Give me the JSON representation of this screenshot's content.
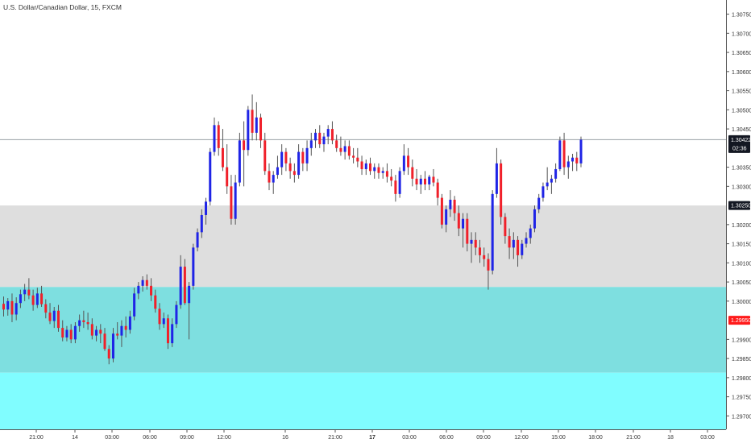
{
  "header": {
    "symbol_title": "U.S. Dollar/Canadian Dollar, 15, FXCM"
  },
  "chart_data": {
    "type": "candlestick",
    "ylim": [
      1.29665,
      1.30787
    ],
    "y_ticks": [
      "1.30750",
      "1.30700",
      "1.30650",
      "1.30600",
      "1.30550",
      "1.30500",
      "1.30450",
      "1.30350",
      "1.30300",
      "1.30200",
      "1.30150",
      "1.30100",
      "1.30050",
      "1.30000",
      "1.29900",
      "1.29850",
      "1.29800",
      "1.29750",
      "1.29700"
    ],
    "x_ticks": [
      {
        "label": "21:00",
        "bold": false
      },
      {
        "label": "14",
        "bold": false
      },
      {
        "label": "03:00",
        "bold": false
      },
      {
        "label": "06:00",
        "bold": false
      },
      {
        "label": "09:00",
        "bold": false
      },
      {
        "label": "12:00",
        "bold": false
      },
      {
        "label": "16",
        "bold": false
      },
      {
        "label": "21:00",
        "bold": false
      },
      {
        "label": "17",
        "bold": true
      },
      {
        "label": "03:00",
        "bold": false
      },
      {
        "label": "06:00",
        "bold": false
      },
      {
        "label": "09:00",
        "bold": false
      },
      {
        "label": "12:00",
        "bold": false
      },
      {
        "label": "15:00",
        "bold": false
      },
      {
        "label": "18:00",
        "bold": false
      },
      {
        "label": "21:00",
        "bold": false
      },
      {
        "label": "18",
        "bold": false
      },
      {
        "label": "03:00",
        "bold": false
      }
    ],
    "price_tags": [
      {
        "label": "1.30422",
        "sub": "02:36",
        "value": 1.30422,
        "bg": "#131722",
        "fg": "#ffffff",
        "line": true
      },
      {
        "label": "1.30250",
        "value": 1.3025,
        "bg": "#131722",
        "fg": "#ffffff",
        "line": false
      },
      {
        "label": "1.29950",
        "value": 1.2995,
        "bg": "#ff1a1a",
        "fg": "#ffffff",
        "line": false
      }
    ],
    "zones": [
      {
        "from": 1.30037,
        "to": 1.3025,
        "color": "#dedede"
      },
      {
        "from": 1.29813,
        "to": 1.30037,
        "color": "#7edfe0"
      },
      {
        "from": 1.29665,
        "to": 1.29813,
        "color": "#80fdff"
      }
    ],
    "colors": {
      "up": "#1f24e6",
      "down": "#f0202a",
      "wick": "#555555"
    },
    "candles": [
      [
        1.29993,
        1.30012,
        1.2996,
        1.29978
      ],
      [
        1.29978,
        1.30008,
        1.29962,
        1.3
      ],
      [
        1.3,
        1.3002,
        1.29945,
        1.29965
      ],
      [
        1.29965,
        1.3001,
        1.2995,
        1.29995
      ],
      [
        1.29995,
        1.3003,
        1.29982,
        1.30018
      ],
      [
        1.30018,
        1.30045,
        1.3,
        1.3003
      ],
      [
        1.3003,
        1.3006,
        1.30005,
        1.30015
      ],
      [
        1.30015,
        1.3003,
        1.29975,
        1.2999
      ],
      [
        1.2999,
        1.30035,
        1.29982,
        1.3002
      ],
      [
        1.3002,
        1.3004,
        1.29985,
        1.29992
      ],
      [
        1.29992,
        1.30005,
        1.29955,
        1.2997
      ],
      [
        1.2997,
        1.29995,
        1.2994,
        1.29948
      ],
      [
        1.29948,
        1.29985,
        1.2993,
        1.29975
      ],
      [
        1.29975,
        1.2999,
        1.2992,
        1.2993
      ],
      [
        1.2993,
        1.2995,
        1.29895,
        1.29905
      ],
      [
        1.29905,
        1.29935,
        1.29895,
        1.29925
      ],
      [
        1.29925,
        1.2994,
        1.2989,
        1.299
      ],
      [
        1.299,
        1.29945,
        1.2989,
        1.29935
      ],
      [
        1.29935,
        1.29965,
        1.2992,
        1.2995
      ],
      [
        1.2995,
        1.29975,
        1.2993,
        1.29945
      ],
      [
        1.29945,
        1.2997,
        1.29925,
        1.2994
      ],
      [
        1.2994,
        1.29955,
        1.299,
        1.2991
      ],
      [
        1.2991,
        1.29935,
        1.29895,
        1.29925
      ],
      [
        1.29925,
        1.2994,
        1.2989,
        1.29915
      ],
      [
        1.29915,
        1.2993,
        1.2987,
        1.29875
      ],
      [
        1.29875,
        1.29885,
        1.29835,
        1.2985
      ],
      [
        1.2985,
        1.2993,
        1.2984,
        1.29915
      ],
      [
        1.29915,
        1.29945,
        1.299,
        1.2991
      ],
      [
        1.2991,
        1.2995,
        1.2988,
        1.29935
      ],
      [
        1.29935,
        1.2996,
        1.29905,
        1.29925
      ],
      [
        1.29925,
        1.29975,
        1.29915,
        1.2996
      ],
      [
        1.2996,
        1.30035,
        1.2995,
        1.3002
      ],
      [
        1.3002,
        1.3005,
        1.30005,
        1.3004
      ],
      [
        1.3004,
        1.30065,
        1.30025,
        1.30055
      ],
      [
        1.30055,
        1.3007,
        1.3003,
        1.3004
      ],
      [
        1.3004,
        1.3006,
        1.3,
        1.30015
      ],
      [
        1.30015,
        1.3003,
        1.2997,
        1.2998
      ],
      [
        1.2998,
        1.29995,
        1.29925,
        1.2994
      ],
      [
        1.2994,
        1.2997,
        1.2993,
        1.29955
      ],
      [
        1.29955,
        1.29965,
        1.29875,
        1.2989
      ],
      [
        1.2989,
        1.29955,
        1.2988,
        1.2994
      ],
      [
        1.2994,
        1.3,
        1.2993,
        1.2999
      ],
      [
        1.2999,
        1.3012,
        1.2998,
        1.3009
      ],
      [
        1.3009,
        1.3011,
        1.2999,
        1.29995
      ],
      [
        1.29995,
        1.3005,
        1.299,
        1.3004
      ],
      [
        1.3004,
        1.3015,
        1.3003,
        1.3014
      ],
      [
        1.3014,
        1.3019,
        1.3013,
        1.3018
      ],
      [
        1.3018,
        1.3024,
        1.30165,
        1.30225
      ],
      [
        1.30225,
        1.3027,
        1.302,
        1.3026
      ],
      [
        1.3026,
        1.304,
        1.3025,
        1.3039
      ],
      [
        1.3039,
        1.3048,
        1.3038,
        1.3046
      ],
      [
        1.3046,
        1.3047,
        1.3038,
        1.304
      ],
      [
        1.304,
        1.3045,
        1.3034,
        1.3035
      ],
      [
        1.3035,
        1.3041,
        1.3028,
        1.303
      ],
      [
        1.303,
        1.3033,
        1.302,
        1.30215
      ],
      [
        1.30215,
        1.3033,
        1.302,
        1.3031
      ],
      [
        1.3031,
        1.3044,
        1.303,
        1.3042
      ],
      [
        1.3042,
        1.3047,
        1.303,
        1.30395
      ],
      [
        1.30395,
        1.3051,
        1.3038,
        1.305
      ],
      [
        1.305,
        1.3054,
        1.3042,
        1.3044
      ],
      [
        1.3044,
        1.3052,
        1.3042,
        1.3048
      ],
      [
        1.3048,
        1.3049,
        1.304,
        1.3042
      ],
      [
        1.3042,
        1.3044,
        1.3033,
        1.3034
      ],
      [
        1.3034,
        1.3036,
        1.3029,
        1.3031
      ],
      [
        1.3031,
        1.3034,
        1.3028,
        1.3033
      ],
      [
        1.3033,
        1.3038,
        1.3032,
        1.3035
      ],
      [
        1.3035,
        1.3041,
        1.3033,
        1.3039
      ],
      [
        1.3039,
        1.304,
        1.3034,
        1.3036
      ],
      [
        1.3036,
        1.30375,
        1.3032,
        1.3034
      ],
      [
        1.3034,
        1.3036,
        1.3031,
        1.3033
      ],
      [
        1.3033,
        1.3041,
        1.3032,
        1.3039
      ],
      [
        1.3039,
        1.304,
        1.3034,
        1.3036
      ],
      [
        1.3036,
        1.3042,
        1.3034,
        1.304
      ],
      [
        1.304,
        1.3044,
        1.3038,
        1.3042
      ],
      [
        1.3042,
        1.3045,
        1.304,
        1.3044
      ],
      [
        1.3044,
        1.3046,
        1.304,
        1.3041
      ],
      [
        1.3041,
        1.3044,
        1.3039,
        1.3043
      ],
      [
        1.3043,
        1.3046,
        1.3041,
        1.3045
      ],
      [
        1.3045,
        1.3047,
        1.3041,
        1.3042
      ],
      [
        1.3042,
        1.30435,
        1.3039,
        1.304
      ],
      [
        1.304,
        1.3043,
        1.3038,
        1.3039
      ],
      [
        1.3039,
        1.3042,
        1.3037,
        1.30405
      ],
      [
        1.30405,
        1.3042,
        1.3037,
        1.3038
      ],
      [
        1.3038,
        1.304,
        1.3036,
        1.30375
      ],
      [
        1.30375,
        1.304,
        1.3035,
        1.30365
      ],
      [
        1.30365,
        1.3038,
        1.3033,
        1.30345
      ],
      [
        1.30345,
        1.3037,
        1.3033,
        1.3036
      ],
      [
        1.3036,
        1.30375,
        1.3033,
        1.3034
      ],
      [
        1.3034,
        1.3036,
        1.3032,
        1.3035
      ],
      [
        1.3035,
        1.3036,
        1.3032,
        1.30335
      ],
      [
        1.30335,
        1.3035,
        1.3032,
        1.3034
      ],
      [
        1.3034,
        1.3036,
        1.3031,
        1.30325
      ],
      [
        1.30325,
        1.30345,
        1.303,
        1.30315
      ],
      [
        1.30315,
        1.3033,
        1.3026,
        1.3028
      ],
      [
        1.3028,
        1.3035,
        1.3027,
        1.3034
      ],
      [
        1.3034,
        1.3041,
        1.3033,
        1.3038
      ],
      [
        1.3038,
        1.304,
        1.3033,
        1.3035
      ],
      [
        1.3035,
        1.3037,
        1.303,
        1.3032
      ],
      [
        1.3032,
        1.30345,
        1.3029,
        1.30305
      ],
      [
        1.30305,
        1.3033,
        1.3028,
        1.3032
      ],
      [
        1.3032,
        1.3034,
        1.3029,
        1.30305
      ],
      [
        1.30305,
        1.3033,
        1.3029,
        1.30325
      ],
      [
        1.30325,
        1.30345,
        1.303,
        1.3031
      ],
      [
        1.3031,
        1.3032,
        1.3025,
        1.3027
      ],
      [
        1.3027,
        1.3028,
        1.3019,
        1.302
      ],
      [
        1.302,
        1.3025,
        1.3018,
        1.3024
      ],
      [
        1.3024,
        1.3029,
        1.3022,
        1.30265
      ],
      [
        1.30265,
        1.30275,
        1.3021,
        1.3023
      ],
      [
        1.3023,
        1.3025,
        1.3017,
        1.3019
      ],
      [
        1.3019,
        1.3023,
        1.3014,
        1.30215
      ],
      [
        1.30215,
        1.3023,
        1.3013,
        1.3015
      ],
      [
        1.3015,
        1.3018,
        1.301,
        1.3016
      ],
      [
        1.3016,
        1.3018,
        1.3012,
        1.3014
      ],
      [
        1.3014,
        1.3016,
        1.301,
        1.3012
      ],
      [
        1.3012,
        1.3014,
        1.3009,
        1.3011
      ],
      [
        1.3011,
        1.30125,
        1.3003,
        1.3008
      ],
      [
        1.3008,
        1.3029,
        1.3007,
        1.3028
      ],
      [
        1.3028,
        1.304,
        1.3027,
        1.3036
      ],
      [
        1.3036,
        1.3037,
        1.302,
        1.3022
      ],
      [
        1.3022,
        1.3023,
        1.3015,
        1.3017
      ],
      [
        1.3017,
        1.3019,
        1.3011,
        1.3014
      ],
      [
        1.3014,
        1.3018,
        1.3011,
        1.3016
      ],
      [
        1.3016,
        1.3017,
        1.3009,
        1.3012
      ],
      [
        1.3012,
        1.3016,
        1.3011,
        1.3015
      ],
      [
        1.3015,
        1.3018,
        1.3014,
        1.30165
      ],
      [
        1.30165,
        1.302,
        1.3015,
        1.3019
      ],
      [
        1.3019,
        1.3025,
        1.3018,
        1.3024
      ],
      [
        1.3024,
        1.3028,
        1.3023,
        1.3027
      ],
      [
        1.3027,
        1.3031,
        1.3026,
        1.303
      ],
      [
        1.303,
        1.3035,
        1.3029,
        1.3031
      ],
      [
        1.3031,
        1.3033,
        1.3028,
        1.3032
      ],
      [
        1.3032,
        1.3036,
        1.3031,
        1.30345
      ],
      [
        1.30345,
        1.3043,
        1.3034,
        1.3042
      ],
      [
        1.3042,
        1.3044,
        1.3033,
        1.3035
      ],
      [
        1.3035,
        1.3038,
        1.3032,
        1.30365
      ],
      [
        1.30365,
        1.30385,
        1.3034,
        1.30375
      ],
      [
        1.30375,
        1.3039,
        1.3034,
        1.3036
      ],
      [
        1.3036,
        1.3043,
        1.3035,
        1.30422
      ]
    ]
  }
}
